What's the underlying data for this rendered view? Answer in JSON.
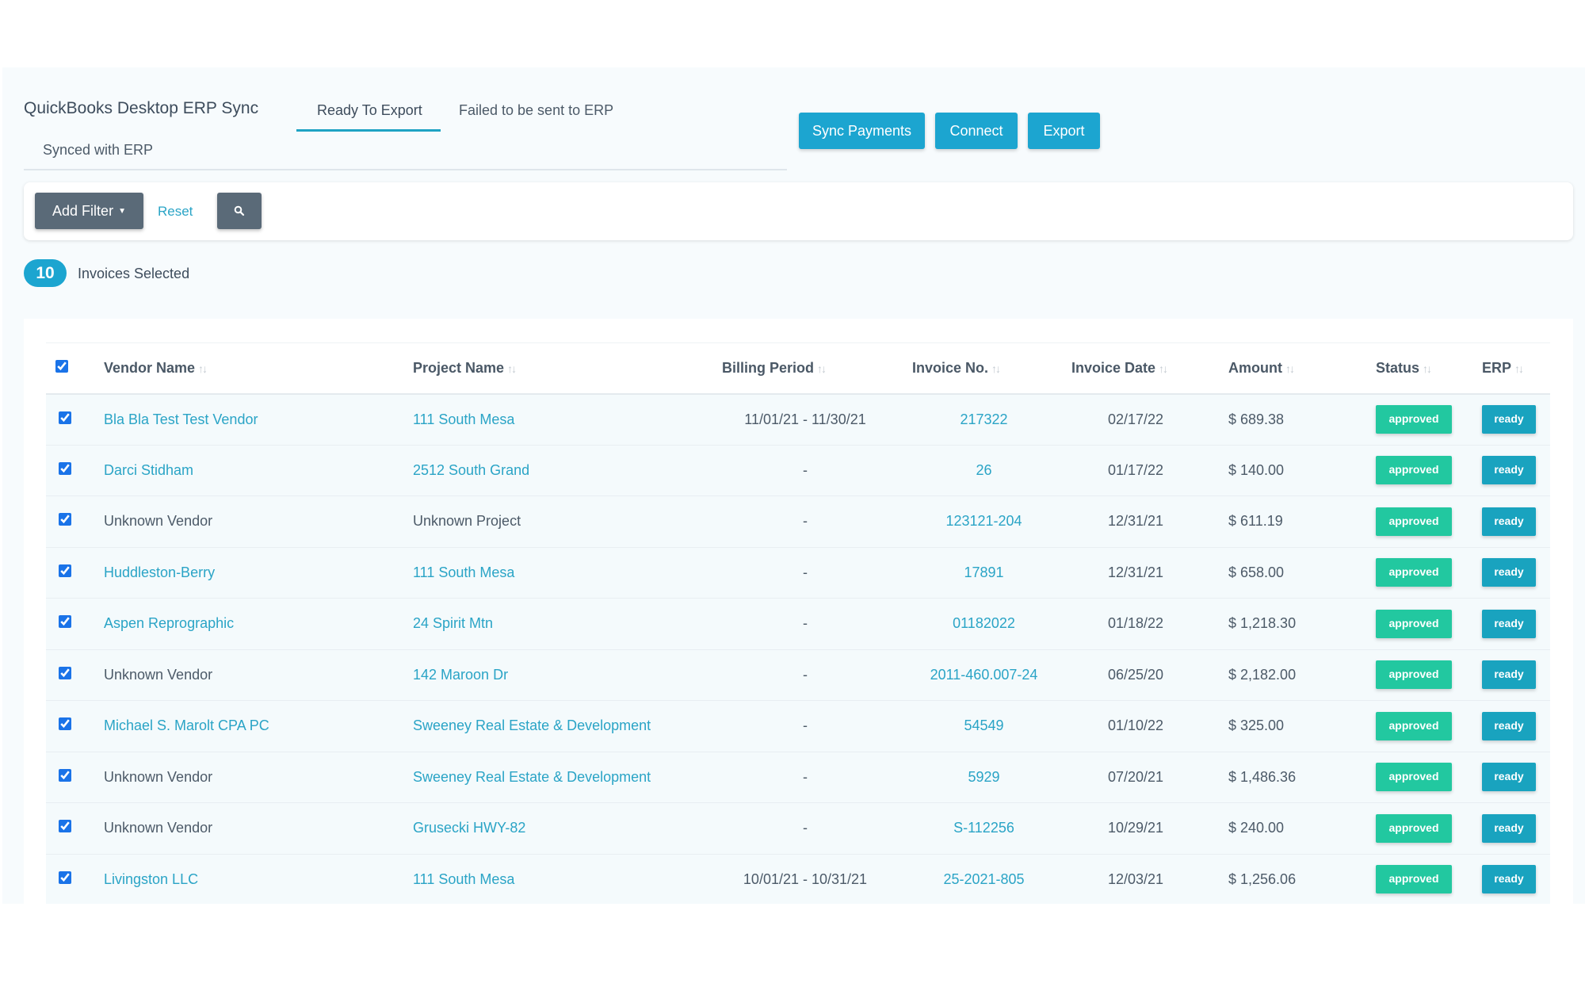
{
  "app": {
    "title": "QuickBooks Desktop ERP Sync"
  },
  "tabs": {
    "ready": "Ready To Export",
    "failed": "Failed to be sent to ERP",
    "synced": "Synced with ERP"
  },
  "actions": {
    "sync": "Sync Payments",
    "connect": "Connect",
    "export": "Export"
  },
  "filter": {
    "add_filter": "Add Filter",
    "reset": "Reset",
    "search_icon": "search-icon"
  },
  "selection": {
    "count": "10",
    "label": "Invoices Selected"
  },
  "colors": {
    "accent": "#1ca5d0",
    "approved": "#22c8a0",
    "ready": "#19a3bf",
    "link": "#2aa4c6"
  },
  "columns": {
    "vendor": "Vendor Name",
    "project": "Project Name",
    "billing": "Billing Period",
    "invoice_no": "Invoice No.",
    "invoice_date": "Invoice Date",
    "amount": "Amount",
    "status": "Status",
    "erp": "ERP",
    "sort_glyph": "↑↓"
  },
  "rows": [
    {
      "vendor": "Bla Bla Test Test Vendor",
      "project": "111 South Mesa",
      "billing": "11/01/21 - 11/30/21",
      "invoice": "217322",
      "date": "02/17/22",
      "amount": "$ 689.38",
      "status": "approved",
      "erp": "ready"
    },
    {
      "vendor": "Darci Stidham",
      "project": "2512 South Grand",
      "billing": "-",
      "invoice": "26",
      "date": "01/17/22",
      "amount": "$ 140.00",
      "status": "approved",
      "erp": "ready"
    },
    {
      "vendor": "Unknown Vendor",
      "project": "Unknown Project",
      "billing": "-",
      "invoice": "123121-204",
      "date": "12/31/21",
      "amount": "$ 611.19",
      "status": "approved",
      "erp": "ready"
    },
    {
      "vendor": "Huddleston-Berry",
      "project": "111 South Mesa",
      "billing": "-",
      "invoice": "17891",
      "date": "12/31/21",
      "amount": "$ 658.00",
      "status": "approved",
      "erp": "ready"
    },
    {
      "vendor": "Aspen Reprographic",
      "project": "24 Spirit Mtn",
      "billing": "-",
      "invoice": "01182022",
      "date": "01/18/22",
      "amount": "$ 1,218.30",
      "status": "approved",
      "erp": "ready"
    },
    {
      "vendor": "Unknown Vendor",
      "project": "142 Maroon Dr",
      "billing": "-",
      "invoice": "2011-460.007-24",
      "date": "06/25/20",
      "amount": "$ 2,182.00",
      "status": "approved",
      "erp": "ready"
    },
    {
      "vendor": "Michael S. Marolt CPA PC",
      "project": "Sweeney Real Estate & Development",
      "billing": "-",
      "invoice": "54549",
      "date": "01/10/22",
      "amount": "$ 325.00",
      "status": "approved",
      "erp": "ready"
    },
    {
      "vendor": "Unknown Vendor",
      "project": "Sweeney Real Estate & Development",
      "billing": "-",
      "invoice": "5929",
      "date": "07/20/21",
      "amount": "$ 1,486.36",
      "status": "approved",
      "erp": "ready"
    },
    {
      "vendor": "Unknown Vendor",
      "project": "Grusecki HWY-82",
      "billing": "-",
      "invoice": "S-112256",
      "date": "10/29/21",
      "amount": "$ 240.00",
      "status": "approved",
      "erp": "ready"
    },
    {
      "vendor": "Livingston LLC",
      "project": "111 South Mesa",
      "billing": "10/01/21 - 10/31/21",
      "invoice": "25-2021-805",
      "date": "12/03/21",
      "amount": "$ 1,256.06",
      "status": "approved",
      "erp": "ready"
    }
  ]
}
